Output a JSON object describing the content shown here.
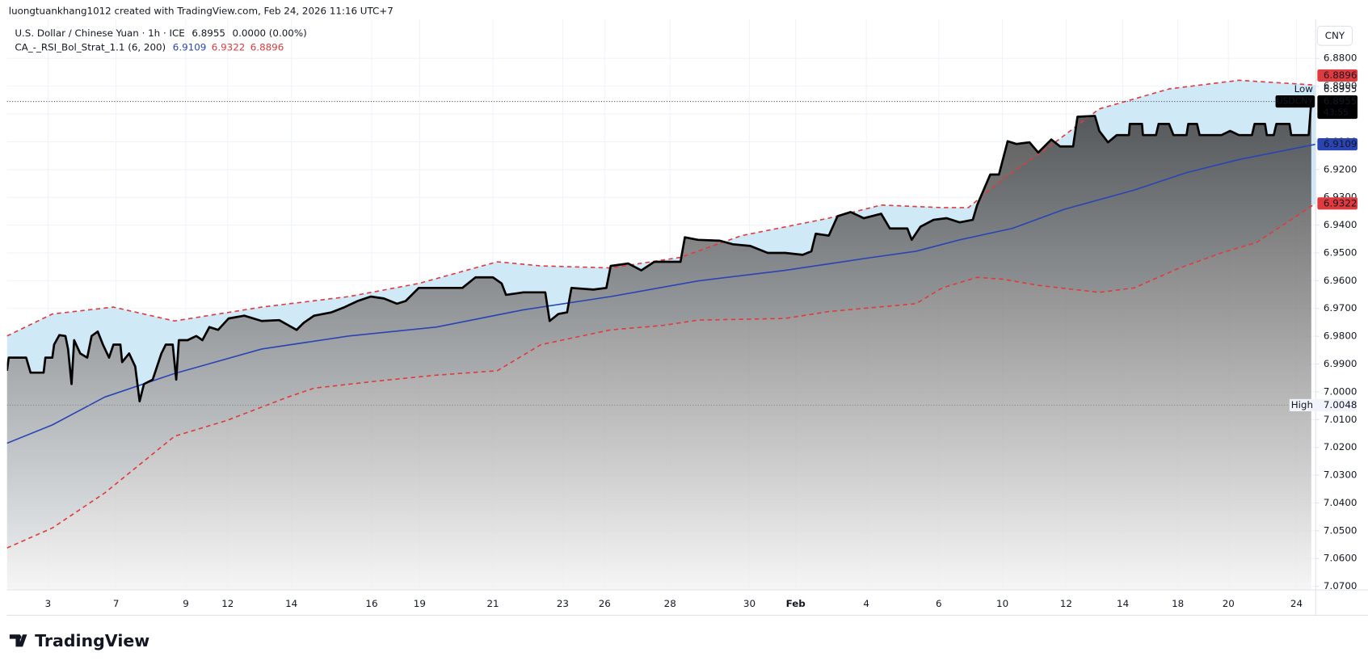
{
  "header": "luongtuankhang1012 created with TradingView.com, Feb 24, 2026 11:16 UTC+7",
  "footer": "TradingView",
  "chart_data": {
    "type": "line",
    "title": "U.S. Dollar / Chinese Yuan · 1h · ICE",
    "last_price": 6.8955,
    "change": "0.0000 (0.00%)",
    "indicator": "CA_-_RSI_Bol_Strat_1.1 (6, 200)",
    "currency": "CNY",
    "symbol": "USDCNY",
    "countdown": "43:55",
    "annotations": [
      {
        "text": "Low",
        "value": 6.8955
      },
      {
        "text": "High",
        "value": 7.0048
      }
    ],
    "band_fill": "#cfe9f6",
    "area_gradient": [
      "#3a3a3a",
      "#f4f4f4"
    ],
    "grid": true,
    "y_inverted": true,
    "xlim": [
      0,
      1500
    ],
    "xticks": [
      {
        "value": 47,
        "label": "3"
      },
      {
        "value": 125,
        "label": "7"
      },
      {
        "value": 205,
        "label": "9"
      },
      {
        "value": 253,
        "label": "12"
      },
      {
        "value": 326,
        "label": "14"
      },
      {
        "value": 418,
        "label": "16"
      },
      {
        "value": 473,
        "label": "19"
      },
      {
        "value": 557,
        "label": "21"
      },
      {
        "value": 637,
        "label": "23"
      },
      {
        "value": 685,
        "label": "26"
      },
      {
        "value": 760,
        "label": "28"
      },
      {
        "value": 851,
        "label": "30"
      },
      {
        "value": 904,
        "label": "Feb"
      },
      {
        "value": 985,
        "label": "4"
      },
      {
        "value": 1068,
        "label": "6"
      },
      {
        "value": 1141,
        "label": "10"
      },
      {
        "value": 1214,
        "label": "12"
      },
      {
        "value": 1279,
        "label": "14"
      },
      {
        "value": 1342,
        "label": "18"
      },
      {
        "value": 1400,
        "label": "20"
      },
      {
        "value": 1478,
        "label": "24"
      }
    ],
    "ylim": [
      7.0713,
      6.8659
    ],
    "yticks": [
      {
        "value": 6.88,
        "label": "6.8800"
      },
      {
        "value": 6.89,
        "label": "6.8900"
      },
      {
        "value": 6.9,
        "label": "6.9000"
      },
      {
        "value": 6.91,
        "label": "6.9100"
      },
      {
        "value": 6.92,
        "label": "6.9200"
      },
      {
        "value": 6.93,
        "label": "6.9300"
      },
      {
        "value": 6.94,
        "label": "6.9400"
      },
      {
        "value": 6.95,
        "label": "6.9500"
      },
      {
        "value": 6.96,
        "label": "6.9600"
      },
      {
        "value": 6.97,
        "label": "6.9700"
      },
      {
        "value": 6.98,
        "label": "6.9800"
      },
      {
        "value": 6.99,
        "label": "6.9900"
      },
      {
        "value": 7.0,
        "label": "7.0000"
      },
      {
        "value": 7.01,
        "label": "7.0100"
      },
      {
        "value": 7.02,
        "label": "7.0200"
      },
      {
        "value": 7.03,
        "label": "7.0300"
      },
      {
        "value": 7.04,
        "label": "7.0400"
      },
      {
        "value": 7.05,
        "label": "7.0500"
      },
      {
        "value": 7.06,
        "label": "7.0600"
      },
      {
        "value": 7.07,
        "label": "7.0700"
      }
    ],
    "series": [
      {
        "name": "USDCNY",
        "color": "#000000",
        "x": [
          0,
          2,
          22,
          27,
          42,
          44,
          52,
          54,
          60,
          67,
          70,
          74,
          77,
          84,
          92,
          97,
          104,
          110,
          117,
          122,
          130,
          132,
          140,
          147,
          152,
          157,
          167,
          177,
          182,
          190,
          194,
          197,
          207,
          217,
          224,
          232,
          242,
          254,
          272,
          292,
          312,
          332,
          340,
          352,
          372,
          387,
          402,
          417,
          432,
          447,
          457,
          472,
          522,
          537,
          557,
          567,
          572,
          592,
          617,
          622,
          632,
          642,
          647,
          672,
          687,
          692,
          712,
          727,
          742,
          772,
          777,
          792,
          817,
          832,
          852,
          872,
          892,
          912,
          922,
          927,
          942,
          952,
          967,
          982,
          1002,
          1012,
          1032,
          1037,
          1047,
          1062,
          1077,
          1092,
          1107,
          1112,
          1127,
          1137,
          1147,
          1157,
          1172,
          1182,
          1197,
          1207,
          1222,
          1227,
          1247,
          1252,
          1262,
          1272,
          1286,
          1287,
          1301,
          1302,
          1317,
          1320,
          1332,
          1337,
          1352,
          1354,
          1364,
          1367,
          1392,
          1402,
          1412,
          1427,
          1430,
          1442,
          1444,
          1452,
          1455,
          1470,
          1472,
          1492,
          1495
        ],
        "values": [
          6.9924,
          6.9877,
          6.9877,
          6.9931,
          6.9931,
          6.9877,
          6.9877,
          6.983,
          6.9796,
          6.9799,
          6.9846,
          6.9972,
          6.9814,
          6.9862,
          6.9877,
          6.9799,
          6.9783,
          6.983,
          6.9877,
          6.983,
          6.983,
          6.9893,
          6.9862,
          6.9909,
          7.0034,
          6.9972,
          6.9956,
          6.9862,
          6.983,
          6.983,
          6.9956,
          6.9814,
          6.9814,
          6.9799,
          6.9814,
          6.9767,
          6.9777,
          6.9736,
          6.9726,
          6.9745,
          6.9742,
          6.9777,
          6.9752,
          6.9726,
          6.9714,
          6.9695,
          6.9673,
          6.9657,
          6.9664,
          6.9683,
          6.9673,
          6.9626,
          6.9626,
          6.9588,
          6.9588,
          6.961,
          6.9651,
          6.9642,
          6.9642,
          6.9745,
          6.972,
          6.9714,
          6.9626,
          6.9632,
          6.9626,
          6.9547,
          6.9538,
          6.9563,
          6.9532,
          6.9532,
          6.9444,
          6.9453,
          6.9456,
          6.9469,
          6.9475,
          6.95,
          6.95,
          6.9507,
          6.9494,
          6.9431,
          6.9438,
          6.9368,
          6.9353,
          6.9375,
          6.9359,
          6.9412,
          6.9412,
          6.9453,
          6.9406,
          6.9381,
          6.9375,
          6.939,
          6.9381,
          6.9328,
          6.9218,
          6.9218,
          6.9098,
          6.9108,
          6.9102,
          6.9139,
          6.9092,
          6.9117,
          6.9117,
          6.901,
          6.9007,
          6.9061,
          6.9102,
          6.9076,
          6.9076,
          6.9036,
          6.9036,
          6.9076,
          6.9076,
          6.9036,
          6.9036,
          6.9076,
          6.9076,
          6.9036,
          6.9036,
          6.9076,
          6.9076,
          6.9061,
          6.9076,
          6.9076,
          6.9036,
          6.9036,
          6.9076,
          6.9076,
          6.9036,
          6.9036,
          6.9076,
          6.9076,
          6.8955
        ]
      },
      {
        "color": "#2b44b4",
        "x": [
          0,
          52,
          112,
          192,
          292,
          392,
          492,
          592,
          692,
          792,
          892,
          992,
          1042,
          1092,
          1152,
          1212,
          1292,
          1352,
          1412,
          1500
        ],
        "values": [
          7.0185,
          7.0119,
          7.0019,
          6.9934,
          6.9846,
          6.9799,
          6.9767,
          6.9705,
          6.9657,
          6.9601,
          6.9563,
          6.9516,
          6.9494,
          6.9453,
          6.9412,
          6.9343,
          6.9274,
          6.9211,
          6.9164,
          6.9109
        ]
      },
      {
        "color": "#e03a3e",
        "dashed": true,
        "x": [
          0,
          52,
          122,
          192,
          292,
          392,
          472,
          562,
          612,
          692,
          772,
          842,
          942,
          1002,
          1072,
          1102,
          1142,
          1192,
          1252,
          1332,
          1412,
          1500
        ],
        "values": [
          6.9799,
          6.972,
          6.9695,
          6.9745,
          6.9695,
          6.9657,
          6.961,
          6.9532,
          6.9547,
          6.9554,
          6.9516,
          6.9438,
          6.9375,
          6.9328,
          6.9337,
          6.9337,
          6.9233,
          6.9124,
          6.8982,
          6.891,
          6.8879,
          6.8896
        ]
      },
      {
        "color": "#e03a3e",
        "dashed": true,
        "x": [
          0,
          52,
          112,
          192,
          252,
          322,
          352,
          422,
          492,
          562,
          612,
          692,
          752,
          792,
          892,
          942,
          1042,
          1072,
          1112,
          1142,
          1182,
          1252,
          1292,
          1342,
          1392,
          1432,
          1500
        ],
        "values": [
          7.0562,
          7.049,
          7.0364,
          7.016,
          7.0103,
          7.0019,
          6.9987,
          6.9962,
          6.994,
          6.9924,
          6.983,
          6.9777,
          6.9761,
          6.9742,
          6.9736,
          6.9711,
          6.9683,
          6.9626,
          6.9588,
          6.9595,
          6.9617,
          6.9642,
          6.9626,
          6.9557,
          6.95,
          6.9463,
          6.9322
        ]
      }
    ]
  }
}
